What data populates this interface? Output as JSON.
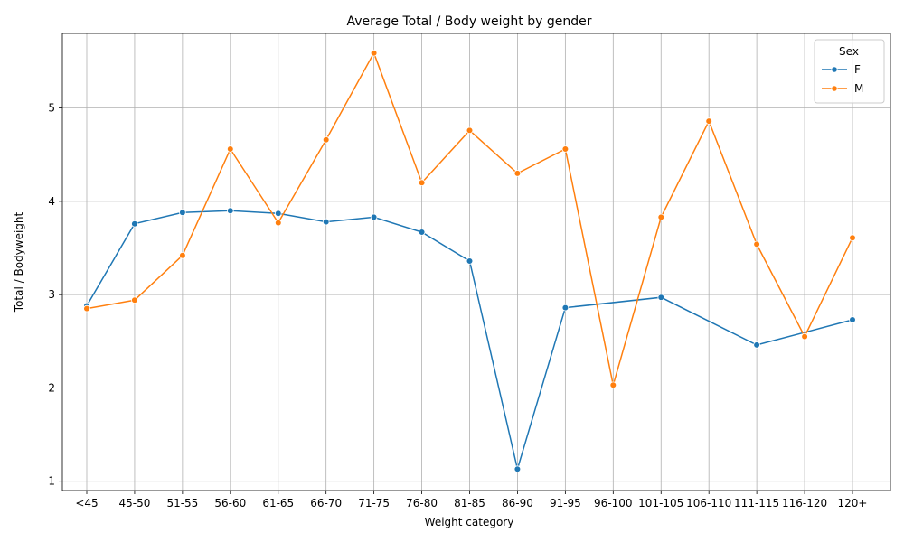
{
  "chart_data": {
    "type": "line",
    "title": "Average Total / Body weight by gender",
    "xlabel": "Weight category",
    "ylabel": "Total / Bodyweight",
    "categories": [
      "<45",
      "45-50",
      "51-55",
      "56-60",
      "61-65",
      "66-70",
      "71-75",
      "76-80",
      "81-85",
      "86-90",
      "91-95",
      "96-100",
      "101-105",
      "106-110",
      "111-115",
      "116-120",
      "120+"
    ],
    "ylim": [
      0.9,
      5.8
    ],
    "yticks": [
      1,
      2,
      3,
      4,
      5
    ],
    "grid": true,
    "legend": {
      "title": "Sex",
      "placement": "top-right"
    },
    "series": [
      {
        "name": "F",
        "color": "#1f77b4",
        "values": [
          2.88,
          3.76,
          3.88,
          3.9,
          3.87,
          3.78,
          3.83,
          3.67,
          3.36,
          1.13,
          2.86,
          null,
          2.97,
          null,
          2.46,
          null,
          2.73
        ]
      },
      {
        "name": "M",
        "color": "#ff7f0e",
        "values": [
          2.85,
          2.94,
          3.42,
          4.56,
          3.77,
          4.66,
          5.59,
          4.2,
          4.76,
          4.3,
          4.56,
          2.03,
          3.83,
          4.86,
          3.54,
          2.55,
          3.61
        ]
      }
    ]
  }
}
